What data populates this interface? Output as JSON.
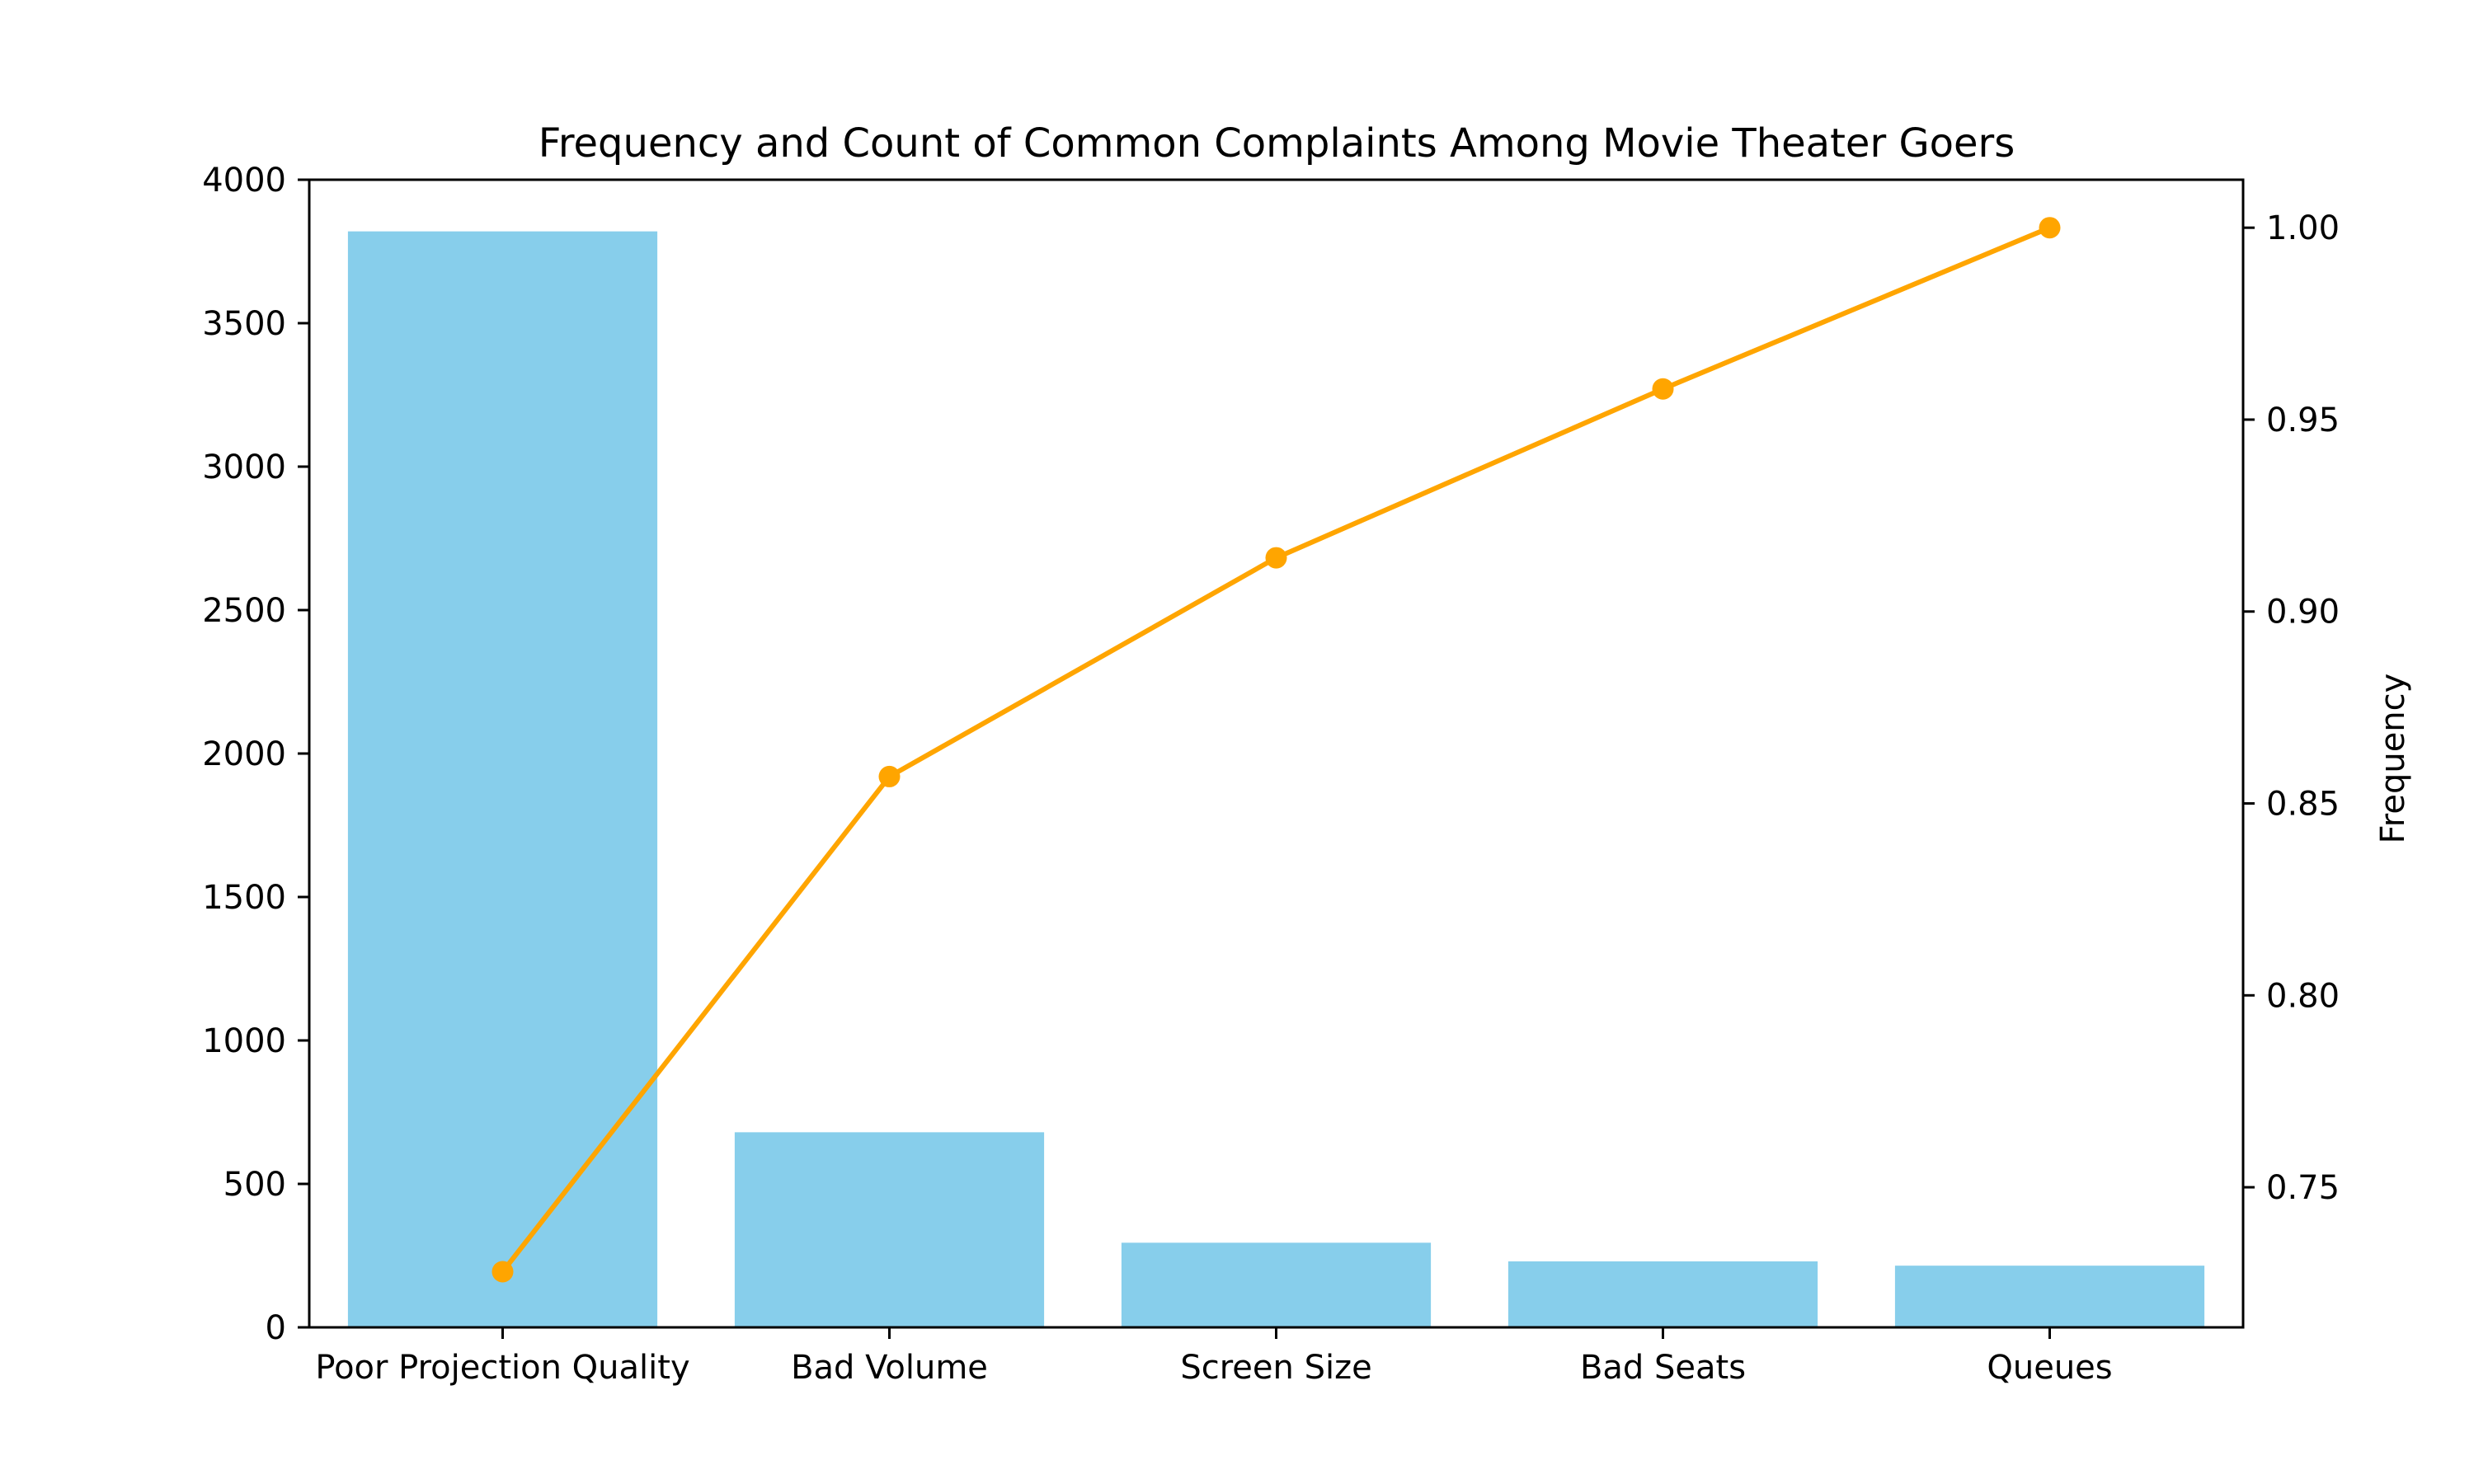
{
  "chart_data": {
    "type": "bar",
    "title": "Frequency and Count of Common Complaints Among Movie Theater Goers",
    "xlabel": "",
    "ylabel": "",
    "y2label": "Frequency",
    "categories": [
      "Poor Projection Quality",
      "Bad Volume",
      "Screen Size",
      "Bad Seats",
      "Queues"
    ],
    "series": [
      {
        "type": "bar",
        "axis": "left",
        "values": [
          3820,
          680,
          295,
          230,
          215
        ]
      },
      {
        "type": "line",
        "axis": "right",
        "values": [
          0.728,
          0.857,
          0.914,
          0.958,
          1.0
        ]
      }
    ],
    "ylim": [
      0,
      4000
    ],
    "y2lim": [
      0.7135,
      1.0125
    ],
    "yticks": [
      0,
      500,
      1000,
      1500,
      2000,
      2500,
      3000,
      3500,
      4000
    ],
    "y2ticks": [
      "0.75",
      "0.80",
      "0.85",
      "0.90",
      "0.95",
      "1.00"
    ],
    "grid": false,
    "colors": {
      "bar": "#87CEEB",
      "line": "#FFA500",
      "axis": "#000000"
    }
  }
}
